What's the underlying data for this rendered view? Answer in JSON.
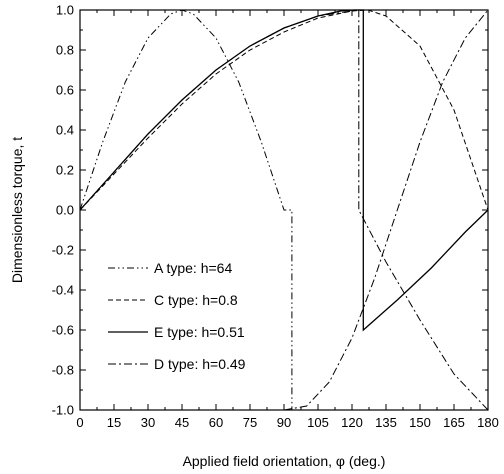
{
  "chart_data": {
    "type": "line",
    "xlabel": "Applied field orientation, φ (deg.)",
    "ylabel": "Dimensionless torque, t",
    "xlim": [
      0,
      180
    ],
    "ylim": [
      -1.0,
      1.0
    ],
    "xticks": [
      "0",
      "15",
      "30",
      "45",
      "60",
      "75",
      "90",
      "105",
      "120",
      "135",
      "150",
      "165",
      "180"
    ],
    "yticks": [
      "1.0",
      "0.8",
      "0.6",
      "0.4",
      "0.2",
      "0.0",
      "-0.2",
      "-0.4",
      "-0.6",
      "-0.8",
      "-1.0"
    ],
    "legend_position": "lower-left",
    "grid": false,
    "series": [
      {
        "name": "A type: h=64",
        "dash": "dash-dot-dot",
        "x": [
          0,
          10,
          20,
          30,
          40,
          45,
          50,
          60,
          70,
          80,
          90,
          93.5,
          93.5
        ],
        "y": [
          0,
          0.34,
          0.64,
          0.86,
          0.98,
          1.0,
          0.98,
          0.86,
          0.64,
          0.34,
          0.0,
          0.0,
          -1.0
        ]
      },
      {
        "name": "C type: h=0.8",
        "dash": "dash",
        "x": [
          0,
          15,
          30,
          45,
          60,
          75,
          90,
          105,
          120,
          127,
          135,
          150,
          165,
          180
        ],
        "y": [
          0,
          0.18,
          0.36,
          0.53,
          0.68,
          0.8,
          0.89,
          0.96,
          0.995,
          1.0,
          0.97,
          0.82,
          0.5,
          0.0
        ]
      },
      {
        "name": "E type: h=0.51",
        "dash": "solid",
        "x": [
          0,
          15,
          30,
          45,
          60,
          75,
          90,
          105,
          115,
          121,
          125,
          125,
          140,
          155,
          170,
          180
        ],
        "y": [
          0,
          0.19,
          0.38,
          0.55,
          0.7,
          0.82,
          0.91,
          0.97,
          0.995,
          1.0,
          1.0,
          -0.6,
          -0.45,
          -0.29,
          -0.11,
          0.0
        ]
      },
      {
        "name": "D type: h=0.49",
        "dash": "dash-dot",
        "x": [
          0,
          15,
          30,
          45,
          60,
          75,
          90,
          105,
          120,
          123,
          123,
          135,
          150,
          165,
          180
        ],
        "y": [
          0,
          0.19,
          0.38,
          0.55,
          0.7,
          0.82,
          0.91,
          0.97,
          0.995,
          1.0,
          0.0,
          -0.26,
          -0.55,
          -0.82,
          -1.0
        ]
      },
      {
        "name": "",
        "dash": "dash-dot",
        "x": [
          90,
          100,
          110,
          120,
          130,
          140,
          150,
          160,
          170,
          180
        ],
        "y": [
          -1.0,
          -0.98,
          -0.86,
          -0.64,
          -0.34,
          0.0,
          0.34,
          0.64,
          0.86,
          1.0
        ]
      }
    ]
  }
}
